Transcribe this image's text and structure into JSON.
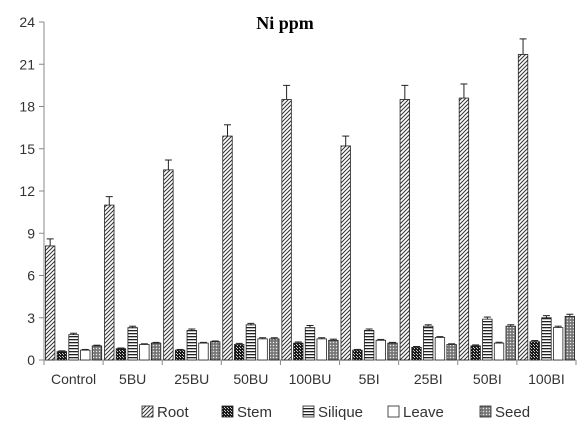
{
  "chart_data": {
    "type": "bar",
    "title": "Ni ppm",
    "xlabel": "",
    "ylabel": "",
    "ylim": [
      0,
      24
    ],
    "yticks": [
      0,
      3,
      6,
      9,
      12,
      15,
      18,
      21,
      24
    ],
    "grid": false,
    "legend_position": "bottom",
    "categories": [
      "Control",
      "5BU",
      "25BU",
      "50BU",
      "100BU",
      "5BI",
      "25BI",
      "50BI",
      "100BI"
    ],
    "series": [
      {
        "name": "Root",
        "pattern": "diagonal-hatch",
        "values": [
          8.1,
          11.0,
          13.5,
          15.9,
          18.5,
          15.2,
          18.5,
          18.6,
          21.7
        ],
        "errors": [
          0.5,
          0.6,
          0.7,
          0.8,
          1.0,
          0.7,
          1.0,
          1.0,
          1.1
        ]
      },
      {
        "name": "Stem",
        "pattern": "dark-checker",
        "values": [
          0.6,
          0.8,
          0.7,
          1.1,
          1.2,
          0.7,
          0.9,
          1.0,
          1.3
        ],
        "errors": [
          0.05,
          0.05,
          0.05,
          0.08,
          0.08,
          0.05,
          0.06,
          0.07,
          0.08
        ]
      },
      {
        "name": "Silique",
        "pattern": "horizontal-stripes",
        "values": [
          1.8,
          2.3,
          2.1,
          2.5,
          2.3,
          2.1,
          2.4,
          2.9,
          3.0
        ],
        "errors": [
          0.1,
          0.1,
          0.1,
          0.1,
          0.15,
          0.1,
          0.1,
          0.15,
          0.15
        ]
      },
      {
        "name": "Leave",
        "pattern": "white",
        "values": [
          0.7,
          1.1,
          1.2,
          1.5,
          1.5,
          1.4,
          1.6,
          1.2,
          2.3
        ],
        "errors": [
          0.05,
          0.05,
          0.05,
          0.08,
          0.08,
          0.06,
          0.06,
          0.06,
          0.1
        ]
      },
      {
        "name": "Seed",
        "pattern": "dense-dots",
        "values": [
          1.0,
          1.2,
          1.3,
          1.5,
          1.4,
          1.2,
          1.1,
          2.4,
          3.1
        ],
        "errors": [
          0.05,
          0.05,
          0.05,
          0.08,
          0.08,
          0.05,
          0.05,
          0.1,
          0.15
        ]
      }
    ]
  }
}
